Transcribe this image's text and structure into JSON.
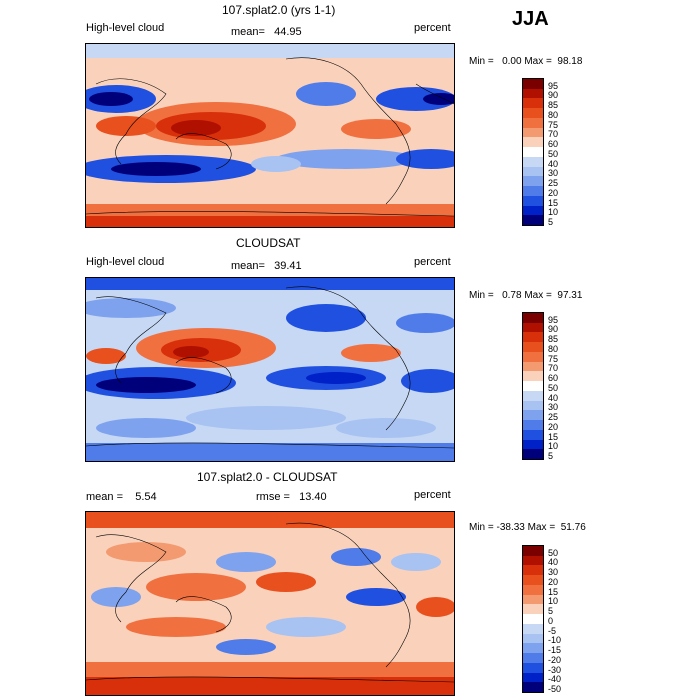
{
  "season": "JJA",
  "panels": [
    {
      "title": "107.splat2.0 (yrs 1-1)",
      "left_label": "High-level cloud",
      "stat_label": "mean=",
      "stat_value": "44.95",
      "right_label": "percent",
      "min_label": "Min =",
      "min_value": "0.00",
      "max_label": "Max =",
      "max_value": "98.18",
      "colorbar": {
        "levels": [
          "95",
          "90",
          "85",
          "80",
          "75",
          "70",
          "60",
          "50",
          "40",
          "30",
          "25",
          "20",
          "15",
          "10",
          "5"
        ],
        "colors": [
          "#7a0000",
          "#b01000",
          "#d8300a",
          "#e8501e",
          "#f07040",
          "#f39a70",
          "#fad2bc",
          "#ffffff",
          "#c6d8f4",
          "#a8c2f2",
          "#7ea2ee",
          "#4f7ce8",
          "#2050e0",
          "#0020c8",
          "#00007a"
        ]
      }
    },
    {
      "title": "CLOUDSAT",
      "left_label": "High-level cloud",
      "stat_label": "mean=",
      "stat_value": "39.41",
      "right_label": "percent",
      "min_label": "Min =",
      "min_value": "0.78",
      "max_label": "Max =",
      "max_value": "97.31",
      "colorbar": {
        "levels": [
          "95",
          "90",
          "85",
          "80",
          "75",
          "70",
          "60",
          "50",
          "40",
          "30",
          "25",
          "20",
          "15",
          "10",
          "5"
        ],
        "colors": [
          "#7a0000",
          "#b01000",
          "#d8300a",
          "#e8501e",
          "#f07040",
          "#f39a70",
          "#fad2bc",
          "#ffffff",
          "#c6d8f4",
          "#a8c2f2",
          "#7ea2ee",
          "#4f7ce8",
          "#2050e0",
          "#0020c8",
          "#00007a"
        ]
      }
    },
    {
      "title": "107.splat2.0 - CLOUDSAT",
      "left_label": "mean =",
      "left_value": "5.54",
      "stat_label": "rmse =",
      "stat_value": "13.40",
      "right_label": "percent",
      "min_label": "Min =",
      "min_value": "-38.33",
      "max_label": "Max =",
      "max_value": "51.76",
      "colorbar": {
        "levels": [
          "50",
          "40",
          "30",
          "20",
          "15",
          "10",
          "5",
          "0",
          "-5",
          "-10",
          "-15",
          "-20",
          "-30",
          "-40",
          "-50"
        ],
        "colors": [
          "#7a0000",
          "#b01000",
          "#d8300a",
          "#e8501e",
          "#f07040",
          "#f39a70",
          "#fad2bc",
          "#ffffff",
          "#c6d8f4",
          "#a8c2f2",
          "#7ea2ee",
          "#4f7ce8",
          "#2050e0",
          "#0020c8",
          "#00007a"
        ]
      }
    }
  ],
  "chart_data": [
    {
      "type": "heatmap",
      "title": "107.splat2.0 (yrs 1-1)",
      "variable": "High-level cloud",
      "units": "percent",
      "mean": 44.95,
      "min": 0.0,
      "max": 98.18,
      "contour_levels": [
        5,
        10,
        15,
        20,
        25,
        30,
        40,
        50,
        60,
        70,
        75,
        80,
        85,
        90,
        95
      ]
    },
    {
      "type": "heatmap",
      "title": "CLOUDSAT",
      "variable": "High-level cloud",
      "units": "percent",
      "mean": 39.41,
      "min": 0.78,
      "max": 97.31,
      "contour_levels": [
        5,
        10,
        15,
        20,
        25,
        30,
        40,
        50,
        60,
        70,
        75,
        80,
        85,
        90,
        95
      ]
    },
    {
      "type": "heatmap",
      "title": "107.splat2.0 - CLOUDSAT",
      "units": "percent",
      "mean": 5.54,
      "rmse": 13.4,
      "min": -38.33,
      "max": 51.76,
      "contour_levels": [
        -50,
        -40,
        -30,
        -20,
        -15,
        -10,
        -5,
        0,
        5,
        10,
        15,
        20,
        30,
        40,
        50
      ]
    }
  ]
}
